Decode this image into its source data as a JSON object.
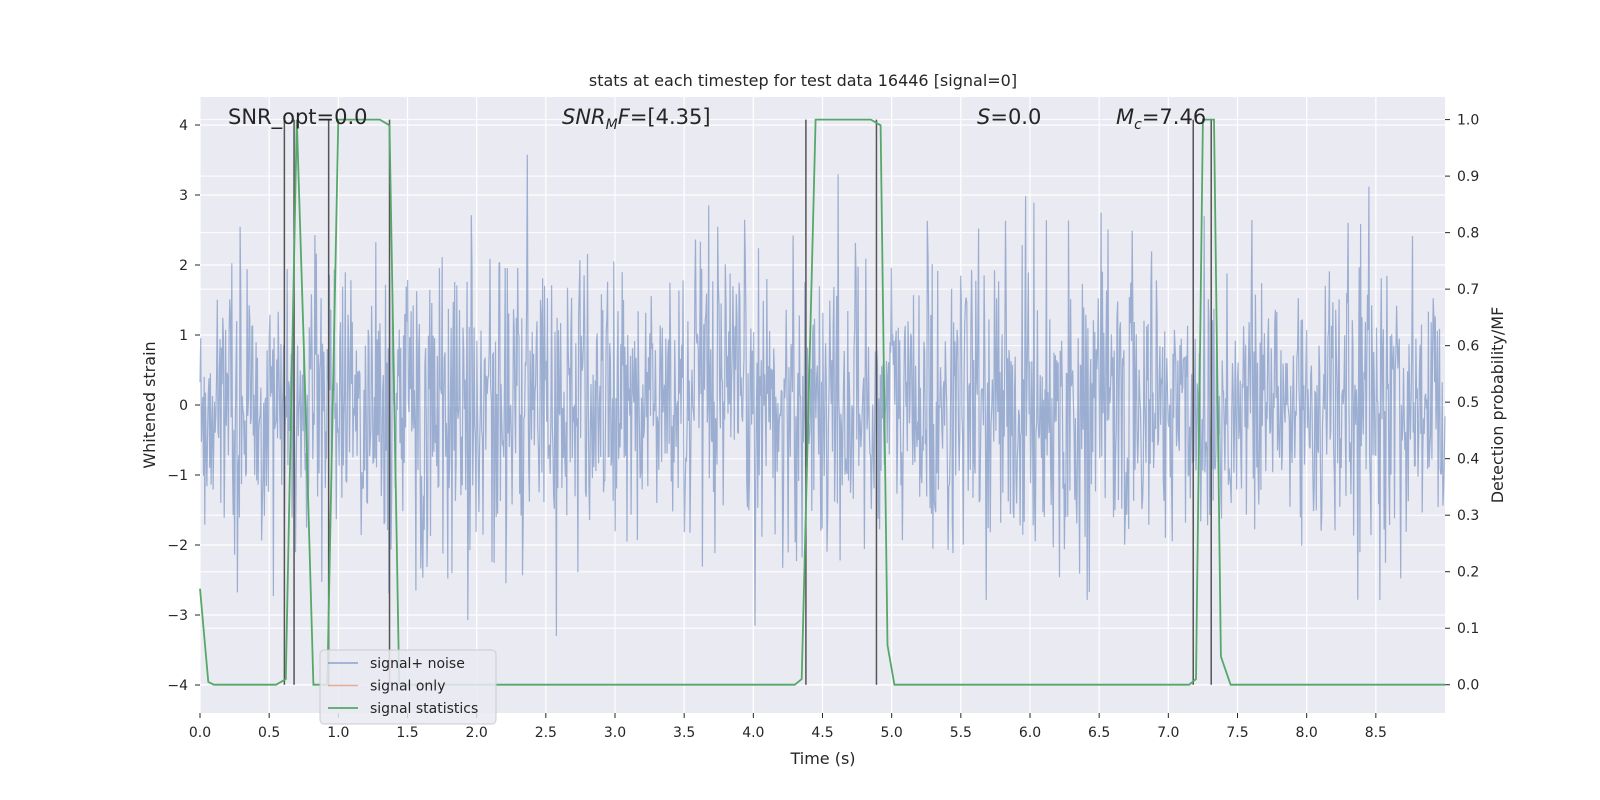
{
  "chart_data": {
    "type": "line",
    "title": "stats at each timestep for test data 16446 [signal=0]",
    "xlabel": "Time (s)",
    "ylabel": "Whitened strain",
    "y2label": "Detection probability/MF",
    "xlim": [
      0.0,
      9.0
    ],
    "ylim": [
      -4.4,
      4.4
    ],
    "y2lim": [
      -0.05,
      1.04
    ],
    "xticks": [
      0.0,
      0.5,
      1.0,
      1.5,
      2.0,
      2.5,
      3.0,
      3.5,
      4.0,
      4.5,
      5.0,
      5.5,
      6.0,
      6.5,
      7.0,
      7.5,
      8.0,
      8.5
    ],
    "xtick_labels": [
      "0.0",
      "0.5",
      "1.0",
      "1.5",
      "2.0",
      "2.5",
      "3.0",
      "3.5",
      "4.0",
      "4.5",
      "5.0",
      "5.5",
      "6.0",
      "6.5",
      "7.0",
      "7.5",
      "8.0",
      "8.5"
    ],
    "yticks": [
      -4,
      -3,
      -2,
      -1,
      0,
      1,
      2,
      3,
      4
    ],
    "ytick_labels": [
      "−4",
      "−3",
      "−2",
      "−1",
      "0",
      "1",
      "2",
      "3",
      "4"
    ],
    "y2ticks": [
      0.0,
      0.1,
      0.2,
      0.3,
      0.4,
      0.5,
      0.6,
      0.7,
      0.8,
      0.9,
      1.0
    ],
    "y2tick_labels": [
      "0.0",
      "0.1",
      "0.2",
      "0.3",
      "0.4",
      "0.5",
      "0.6",
      "0.7",
      "0.8",
      "0.9",
      "1.0"
    ],
    "grid": true,
    "legend_placement": "lower-left",
    "annotations": [
      {
        "id": "snr-opt",
        "text": "SNR_opt=0.0"
      },
      {
        "id": "snr-mf",
        "text": "SNR_MF=[4.35]"
      },
      {
        "id": "s-stat",
        "text": "S=0.0"
      },
      {
        "id": "chirp-mass",
        "text": "M_c=7.46"
      }
    ],
    "series": [
      {
        "name": "signal+ noise",
        "color": "#4c72b0",
        "description_values": "whitened noise, approx. Gaussian, envelope about ±2.5 with peaks to ±3.8",
        "envelope": [
          -2.5,
          2.5
        ]
      },
      {
        "name": "signal only",
        "color": "#dd8452",
        "values": []
      },
      {
        "name": "signal statistics",
        "color": "#55a868",
        "axis": "right",
        "x": [
          0.0,
          0.06,
          0.1,
          0.15,
          0.55,
          0.62,
          0.7,
          0.75,
          0.82,
          0.92,
          1.0,
          1.05,
          1.3,
          1.37,
          1.44,
          1.5,
          4.3,
          4.35,
          4.45,
          4.5,
          4.85,
          4.92,
          4.97,
          5.02,
          7.15,
          7.2,
          7.25,
          7.33,
          7.38,
          7.45,
          9.0
        ],
        "values": [
          0.17,
          0.005,
          0.0,
          0.0,
          0.0,
          0.01,
          1.0,
          0.6,
          0.0,
          0.0,
          1.0,
          1.0,
          1.0,
          0.99,
          0.0,
          0.0,
          0.0,
          0.01,
          1.0,
          1.0,
          1.0,
          0.99,
          0.07,
          0.0,
          0.0,
          0.01,
          1.0,
          1.0,
          0.05,
          0.0,
          0.0
        ]
      }
    ],
    "vertical_markers_x": [
      0.61,
      0.68,
      0.93,
      1.37,
      4.38,
      4.89,
      7.18,
      7.31
    ]
  },
  "legend": {
    "items": [
      {
        "label": "signal+ noise",
        "color": "#4c72b0"
      },
      {
        "label": "signal only",
        "color": "#dd8452"
      },
      {
        "label": "signal statistics",
        "color": "#55a868"
      }
    ]
  },
  "colors": {
    "plot_background": "#eaeaf2",
    "grid": "#ffffff",
    "marker_line": "#555555"
  }
}
